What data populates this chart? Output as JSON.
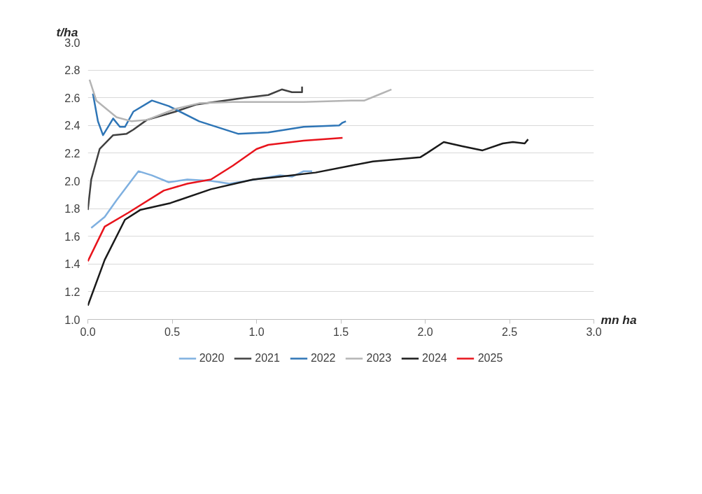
{
  "chart_data": {
    "type": "line",
    "xlabel": "mn ha",
    "ylabel": "t/ha",
    "xlim": [
      0,
      3.0
    ],
    "ylim": [
      1.0,
      3.0
    ],
    "xticks": [
      {
        "value": 0,
        "label": "0.0"
      },
      0.5,
      {
        "value": 1.0,
        "label": "1.0"
      },
      1.5,
      {
        "value": 2.0,
        "label": "2.0"
      },
      2.5,
      {
        "value": 3.0,
        "label": "3.0"
      }
    ],
    "yticks": [
      {
        "value": 1.0,
        "label": "1.0"
      },
      1.2,
      1.4,
      1.6,
      1.8,
      {
        "value": 2.0,
        "label": "2.0"
      },
      2.2,
      2.4,
      2.6,
      2.8,
      {
        "value": 3.0,
        "label": "3.0"
      }
    ],
    "grid": "y",
    "legend": "bottom",
    "marker": "none",
    "line_style": "solid",
    "series": [
      {
        "name": "2020",
        "color": "#7fb0e0",
        "x": [
          0.02,
          0.1,
          0.17,
          0.3,
          0.38,
          0.48,
          0.59,
          0.73,
          0.84,
          1.14,
          1.21,
          1.28,
          1.33
        ],
        "values": [
          1.66,
          1.74,
          1.86,
          2.07,
          2.04,
          1.99,
          2.01,
          2.0,
          1.98,
          2.04,
          2.03,
          2.07,
          2.07
        ]
      },
      {
        "name": "2021",
        "color": "#404040",
        "x": [
          0,
          0.02,
          0.07,
          0.15,
          0.23,
          0.27,
          0.35,
          0.52,
          0.64,
          0.93,
          1.07,
          1.15,
          1.21,
          1.27,
          1.27
        ],
        "values": [
          1.79,
          2.01,
          2.23,
          2.33,
          2.34,
          2.37,
          2.44,
          2.5,
          2.55,
          2.6,
          2.62,
          2.66,
          2.64,
          2.64,
          2.68
        ]
      },
      {
        "name": "2022",
        "color": "#2e75b6",
        "x": [
          0.03,
          0.06,
          0.09,
          0.12,
          0.15,
          0.19,
          0.22,
          0.27,
          0.38,
          0.48,
          0.66,
          0.89,
          1.07,
          1.28,
          1.49,
          1.51,
          1.53
        ],
        "values": [
          2.63,
          2.43,
          2.33,
          2.39,
          2.45,
          2.39,
          2.39,
          2.5,
          2.58,
          2.54,
          2.43,
          2.34,
          2.35,
          2.39,
          2.4,
          2.42,
          2.43
        ]
      },
      {
        "name": "2023",
        "color": "#b4b4b4",
        "x": [
          0.01,
          0.05,
          0.17,
          0.26,
          0.35,
          0.52,
          0.66,
          0.86,
          1.14,
          1.28,
          1.56,
          1.64,
          1.72,
          1.8
        ],
        "values": [
          2.73,
          2.58,
          2.46,
          2.43,
          2.44,
          2.52,
          2.56,
          2.57,
          2.57,
          2.57,
          2.58,
          2.58,
          2.62,
          2.66
        ]
      },
      {
        "name": "2024",
        "color": "#1a1a1a",
        "x": [
          0,
          0.1,
          0.22,
          0.31,
          0.49,
          0.73,
          0.98,
          1.14,
          1.35,
          1.56,
          1.69,
          1.97,
          2.01,
          2.11,
          2.22,
          2.34,
          2.46,
          2.52,
          2.59,
          2.61
        ],
        "values": [
          1.1,
          1.43,
          1.72,
          1.79,
          1.84,
          1.94,
          2.01,
          2.03,
          2.06,
          2.11,
          2.14,
          2.17,
          2.2,
          2.28,
          2.25,
          2.22,
          2.27,
          2.28,
          2.27,
          2.3
        ]
      },
      {
        "name": "2025",
        "color": "#e8141c",
        "x": [
          0,
          0.1,
          0.24,
          0.45,
          0.59,
          0.73,
          0.86,
          1.0,
          1.07,
          1.28,
          1.51
        ],
        "values": [
          1.42,
          1.67,
          1.77,
          1.93,
          1.98,
          2.01,
          2.11,
          2.23,
          2.26,
          2.29,
          2.31
        ]
      }
    ]
  }
}
